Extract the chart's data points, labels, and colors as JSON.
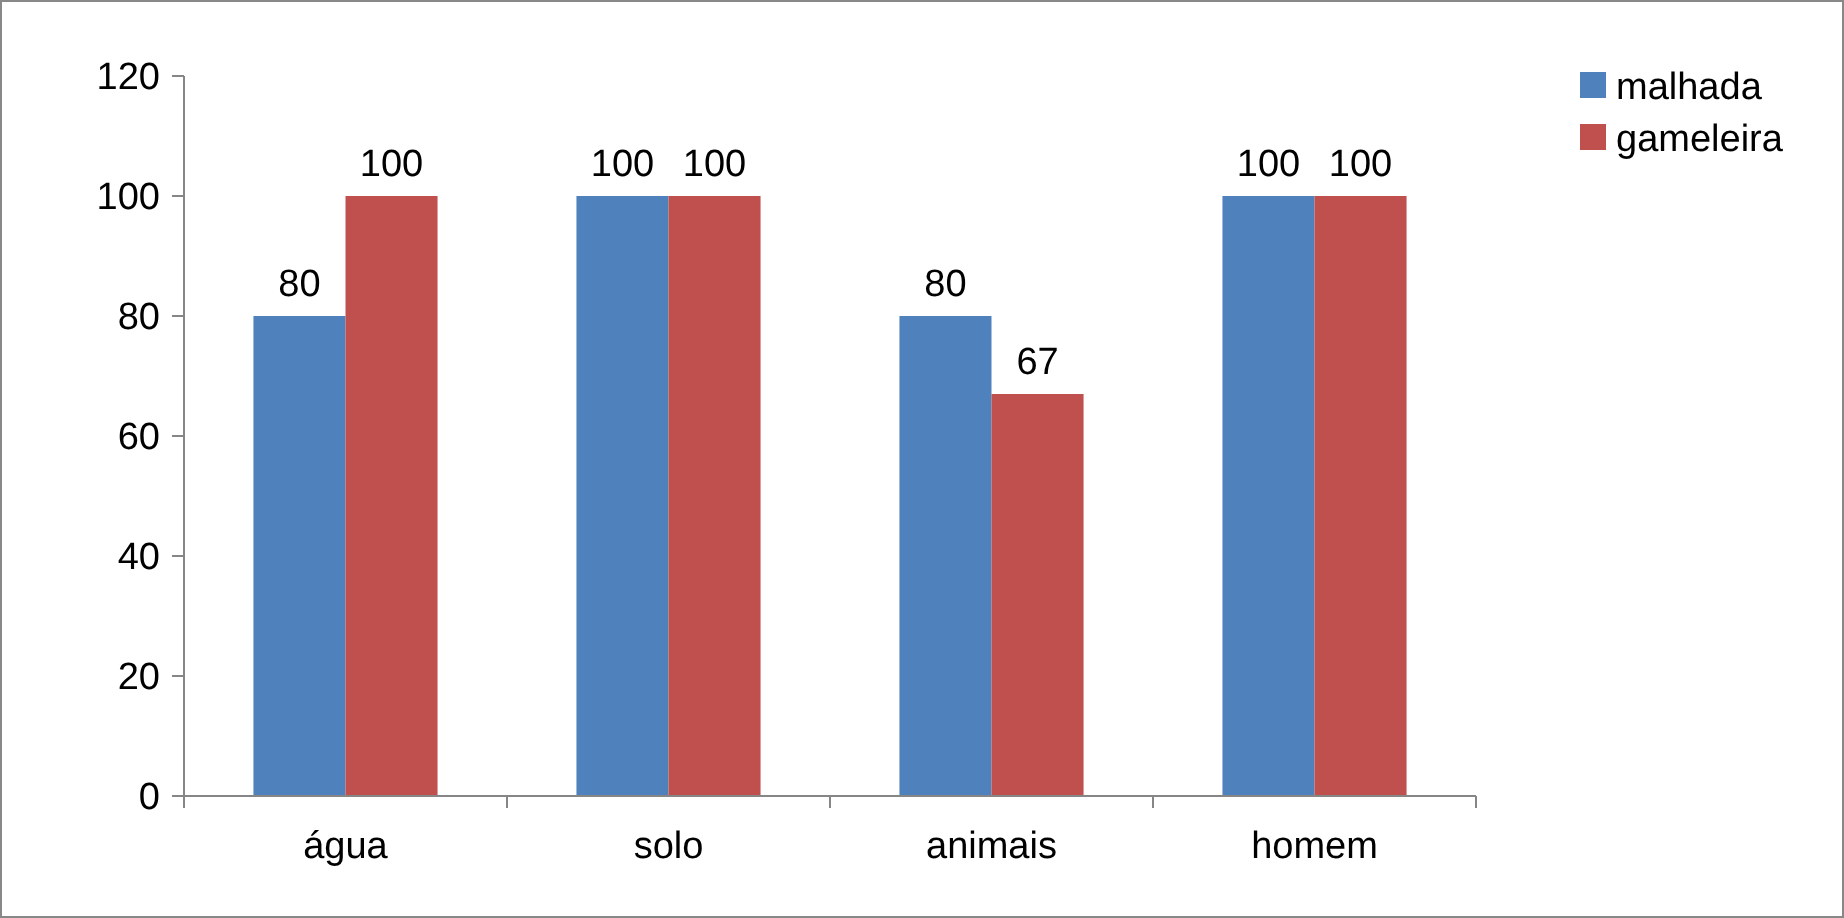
{
  "chart_data": {
    "type": "bar",
    "categories": [
      "água",
      "solo",
      "animais",
      "homem"
    ],
    "series": [
      {
        "name": "malhada",
        "color": "#4f81bd",
        "values": [
          80,
          100,
          80,
          100
        ]
      },
      {
        "name": "gameleira",
        "color": "#c0504d",
        "values": [
          100,
          100,
          67,
          100
        ]
      }
    ],
    "ylim": [
      0,
      120
    ],
    "yticks": [
      0,
      20,
      40,
      60,
      80,
      100,
      120
    ],
    "grid": false,
    "legend": "top right",
    "data_labels": true
  }
}
